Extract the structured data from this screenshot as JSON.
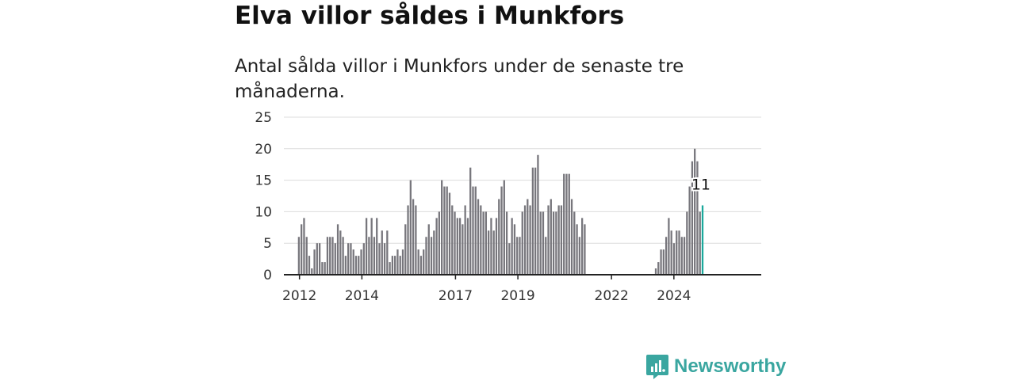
{
  "title": "Elva villor såldes i Munkfors",
  "subtitle": "Antal sålda villor i Munkfors under de senaste tre månaderna.",
  "brand": {
    "name": "Newsworthy",
    "icon": "newsworthy-logo-icon"
  },
  "colors": {
    "bar": "#77767c",
    "highlight": "#1aa89c",
    "brand": "#3aa6a0"
  },
  "chart_data": {
    "type": "bar",
    "ylim": [
      0,
      25
    ],
    "yticks": [
      0,
      5,
      10,
      15,
      20,
      25
    ],
    "xlim": [
      2011.5,
      2026.8
    ],
    "xticks": [
      {
        "label": "2012",
        "x": 2012.0
      },
      {
        "label": "2014",
        "x": 2014.0
      },
      {
        "label": "2017",
        "x": 2017.0
      },
      {
        "label": "2019",
        "x": 2019.0
      },
      {
        "label": "2022",
        "x": 2022.0
      },
      {
        "label": "2024",
        "x": 2024.0
      }
    ],
    "grid": true,
    "series": [
      {
        "start": 2011.98,
        "step": 0.0833,
        "values": [
          6,
          8,
          9,
          6,
          3,
          1,
          4,
          5,
          5,
          2,
          2,
          6,
          6,
          6,
          5,
          8,
          7,
          6,
          3,
          5,
          5,
          4,
          3,
          3,
          4,
          5,
          9,
          6,
          9,
          6,
          9,
          5,
          7,
          5,
          7,
          2,
          3,
          3,
          4,
          3,
          4,
          8,
          11,
          15,
          12,
          11,
          4,
          3,
          4,
          6,
          8,
          6,
          7,
          9,
          10,
          15,
          14,
          14,
          13,
          11,
          10,
          9,
          9,
          8,
          11,
          9,
          17,
          14,
          14,
          12,
          11,
          10,
          10,
          7,
          9,
          7,
          9,
          12,
          14,
          15,
          10,
          5,
          9,
          8,
          6,
          6,
          10,
          11,
          12,
          11,
          17,
          17,
          19,
          10,
          10,
          6,
          11,
          12,
          10,
          10,
          11,
          11,
          16,
          16,
          16,
          12,
          10,
          8,
          6,
          9,
          8
        ]
      },
      {
        "start": 2023.42,
        "step": 0.0833,
        "values": [
          1,
          2,
          4,
          4,
          6,
          9,
          7,
          5,
          7,
          7,
          6,
          6,
          10,
          14,
          18,
          20,
          18,
          10,
          11
        ]
      }
    ],
    "highlight_label": "11"
  }
}
